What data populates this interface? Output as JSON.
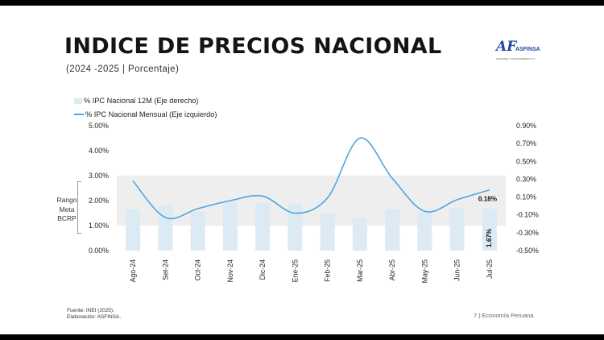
{
  "header": {
    "title": "INDICE DE PRECIOS NACIONAL",
    "subtitle": "(2024 -2025 | Porcentaje)"
  },
  "logo": {
    "mark": "AF",
    "name": "ASFINSA",
    "tagline": "ASESORES Y FINANCIAMIENTO S.A."
  },
  "rango_label": [
    "Rango",
    "Meta",
    "BCRP"
  ],
  "footer": {
    "source": "Fuente: INEI (2025).",
    "author": "Elaboración: ASFINSA.",
    "page": "7 | Economía Peruana"
  },
  "colors": {
    "bar": "#dceaf3",
    "line": "#4ea6dc",
    "band": "#eeeeee"
  },
  "chart_data": {
    "type": "bar",
    "title": "INDICE DE PRECIOS NACIONAL",
    "categories": [
      "Ago-24",
      "Set-24",
      "Oct-24",
      "Nov-24",
      "Dic-24",
      "Ene-25",
      "Feb-25",
      "Mar-25",
      "Abr-25",
      "May-25",
      "Jun-25",
      "Jul-25"
    ],
    "series": [
      {
        "name": "% IPC Nacional 12M (Eje derecho)",
        "type": "bar",
        "axis": "left",
        "values": [
          1.65,
          1.8,
          1.55,
          1.95,
          1.9,
          1.85,
          1.5,
          1.3,
          1.65,
          1.55,
          1.7,
          1.67
        ]
      },
      {
        "name": "% IPC Nacional Mensual (Eje izquierdo)",
        "type": "line",
        "axis": "right",
        "values": [
          0.28,
          -0.13,
          -0.03,
          0.06,
          0.11,
          -0.08,
          0.09,
          0.76,
          0.31,
          -0.06,
          0.07,
          0.18
        ]
      }
    ],
    "left_axis": {
      "range": [
        0,
        5
      ],
      "ticks": [
        0,
        1,
        2,
        3,
        4,
        5
      ],
      "tick_labels": [
        "0.00%",
        "1.00%",
        "2.00%",
        "3.00%",
        "4.00%",
        "5.00%"
      ]
    },
    "right_axis": {
      "range": [
        -0.5,
        0.9
      ],
      "ticks": [
        -0.5,
        -0.3,
        -0.1,
        0.1,
        0.3,
        0.5,
        0.7,
        0.9
      ],
      "tick_labels": [
        "-0.50%",
        "-0.30%",
        "-0.10%",
        "0.10%",
        "0.30%",
        "0.50%",
        "0.70%",
        "0.90%"
      ]
    },
    "target_band": {
      "from": 1,
      "to": 3,
      "label": "Rango Meta BCRP"
    },
    "data_labels": {
      "line_last": "0.18%",
      "bar_last": "1.67%"
    }
  }
}
